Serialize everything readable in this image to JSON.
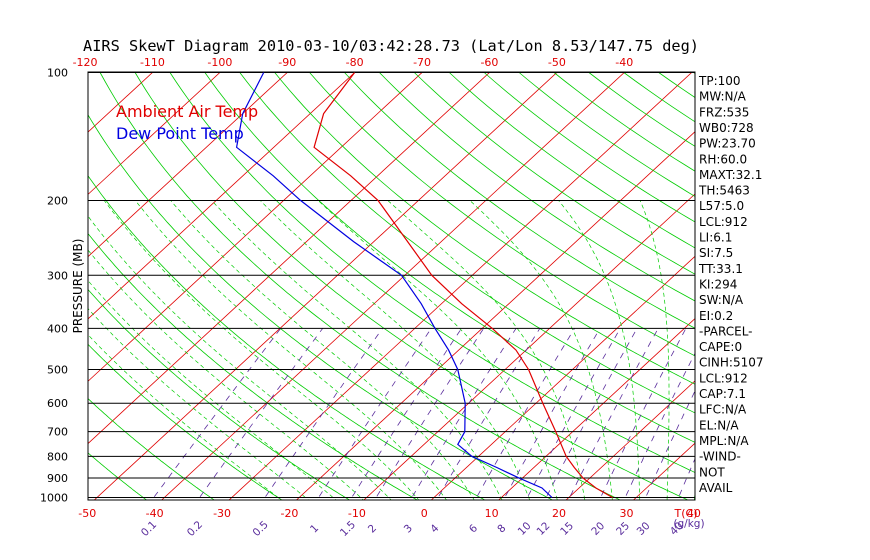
{
  "chart_data": {
    "type": "skew-t",
    "title": "AIRS SkewT Diagram 2010-03-10/03:42:28.73 (Lat/Lon 8.53/147.75 deg)",
    "ylabel": "PRESSURE (MB)",
    "xlabel": "T(C)",
    "mixing_ratio_unit": "(g/kg)",
    "pressure_ticks": [
      100,
      200,
      300,
      400,
      500,
      600,
      700,
      800,
      900,
      1000
    ],
    "top_temp_ticks": [
      -120,
      -110,
      -100,
      -90,
      -80,
      -70,
      -60,
      -50,
      -40
    ],
    "bottom_temp_ticks": [
      -50,
      -40,
      -30,
      -20,
      -10,
      0,
      10,
      20,
      30,
      40
    ],
    "mixing_ratio_labels": [
      "0.1",
      "0.2",
      "0.5",
      "1",
      "1.5",
      "2",
      "3",
      "4",
      "6",
      "8",
      "10",
      "12",
      "15",
      "20",
      "25",
      "30",
      "40"
    ],
    "legend": [
      {
        "label": "Ambient Air Temp",
        "color": "#e00000"
      },
      {
        "label": "Dew Point Temp",
        "color": "#0000e0"
      }
    ],
    "series": [
      {
        "name": "Ambient Air Temp",
        "points": [
          {
            "p": 1000,
            "t": 26.5
          },
          {
            "p": 950,
            "t": 22.5
          },
          {
            "p": 900,
            "t": 19.0
          },
          {
            "p": 850,
            "t": 16.0
          },
          {
            "p": 800,
            "t": 13.0
          },
          {
            "p": 700,
            "t": 7.5
          },
          {
            "p": 600,
            "t": 1.0
          },
          {
            "p": 500,
            "t": -6.5
          },
          {
            "p": 450,
            "t": -11.5
          },
          {
            "p": 400,
            "t": -18.5
          },
          {
            "p": 350,
            "t": -27.0
          },
          {
            "p": 300,
            "t": -36.0
          },
          {
            "p": 250,
            "t": -45.0
          },
          {
            "p": 200,
            "t": -56.0
          },
          {
            "p": 175,
            "t": -64.0
          },
          {
            "p": 150,
            "t": -74.0
          },
          {
            "p": 125,
            "t": -78.0
          },
          {
            "p": 100,
            "t": -80.0
          }
        ]
      },
      {
        "name": "Dew Point Temp",
        "points": [
          {
            "p": 1000,
            "t": 17.5
          },
          {
            "p": 950,
            "t": 14.5
          },
          {
            "p": 900,
            "t": 9.5
          },
          {
            "p": 850,
            "t": 4.5
          },
          {
            "p": 800,
            "t": -1.0
          },
          {
            "p": 750,
            "t": -5.0
          },
          {
            "p": 700,
            "t": -6.0
          },
          {
            "p": 600,
            "t": -10.5
          },
          {
            "p": 500,
            "t": -17.0
          },
          {
            "p": 450,
            "t": -21.5
          },
          {
            "p": 400,
            "t": -27.0
          },
          {
            "p": 350,
            "t": -33.0
          },
          {
            "p": 300,
            "t": -40.5
          },
          {
            "p": 250,
            "t": -53.0
          },
          {
            "p": 200,
            "t": -67.5
          },
          {
            "p": 175,
            "t": -75.5
          },
          {
            "p": 150,
            "t": -85.5
          },
          {
            "p": 125,
            "t": -90.0
          },
          {
            "p": 100,
            "t": -93.5
          }
        ]
      }
    ],
    "indices": [
      "TP:100",
      "MW:N/A",
      "FRZ:535",
      "WB0:728",
      "PW:23.70",
      "RH:60.0",
      "MAXT:32.1",
      "TH:5463",
      "L57:5.0",
      "LCL:912",
      "LI:6.1",
      "SI:7.5",
      "TT:33.1",
      "KI:294",
      "SW:N/A",
      "EI:0.2",
      "-PARCEL-",
      "CAPE:0",
      "CINH:5107",
      "LCL:912",
      "CAP:7.1",
      "LFC:N/A",
      "EL:N/A",
      "MPL:N/A",
      "-WIND-",
      "NOT",
      "AVAIL"
    ],
    "colors": {
      "isobar": "#000000",
      "isotherm": "#e00000",
      "dry_adiabat": "#00cc00",
      "moist_adiabat": "#00cc00",
      "mixing_ratio": "#5a2d9c",
      "temp_tick_label": "#e00000",
      "mixing_label": "#5a2d9c"
    }
  }
}
